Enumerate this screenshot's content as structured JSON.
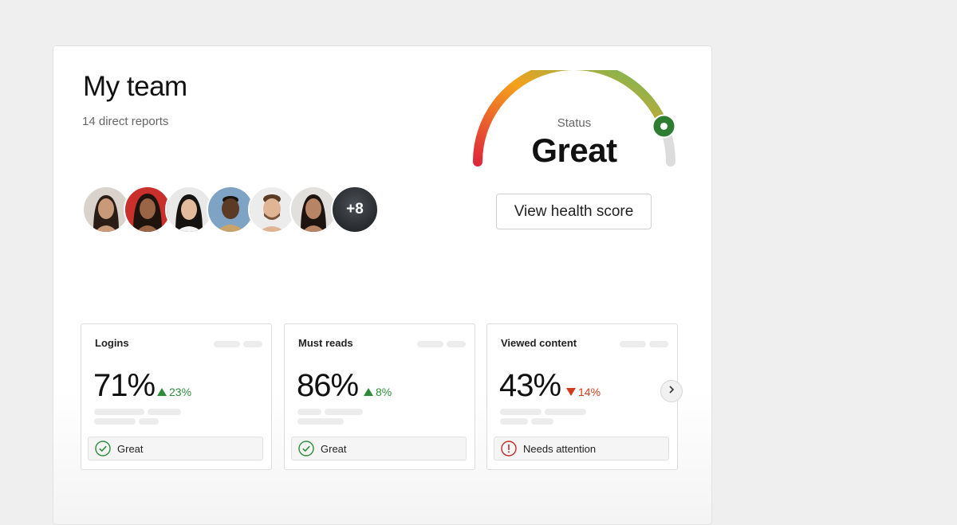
{
  "team": {
    "title": "My team",
    "subtitle": "14 direct reports",
    "avatars": [
      {
        "name": "avatar-1",
        "skin": "#c89a7a",
        "hair": "#2a1d16",
        "bg": "#d9d3cc"
      },
      {
        "name": "avatar-2",
        "skin": "#9a6446",
        "hair": "#1e130d",
        "bg": "#c9302c"
      },
      {
        "name": "avatar-3",
        "skin": "#e3bb9c",
        "hair": "#161210",
        "bg": "#e8e8e8"
      },
      {
        "name": "avatar-4",
        "skin": "#5b3a26",
        "hair": "#1a120d",
        "bg": "#7fa3c4"
      },
      {
        "name": "avatar-5",
        "skin": "#e0b595",
        "hair": "#5a3b24",
        "bg": "#ececec"
      },
      {
        "name": "avatar-6",
        "skin": "#b88466",
        "hair": "#1d1410",
        "bg": "#e2e0dc"
      }
    ],
    "more_count": "+8"
  },
  "health": {
    "status_label": "Status",
    "status_value": "Great",
    "level": 0.88,
    "button_label": "View health score",
    "colors": {
      "low": "#e0283c",
      "mid": "#f5a11c",
      "high": "#5dbb63",
      "marker": "#2e7d32",
      "track": "#dcdcdc"
    }
  },
  "metrics": [
    {
      "title": "Logins",
      "value": "71%",
      "trend": "23%",
      "direction": "up",
      "status": "Great",
      "status_kind": "good"
    },
    {
      "title": "Must reads",
      "value": "86%",
      "trend": "8%",
      "direction": "up",
      "status": "Great",
      "status_kind": "good"
    },
    {
      "title": "Viewed content",
      "value": "43%",
      "trend": "14%",
      "direction": "down",
      "status": "Needs attention",
      "status_kind": "warning"
    }
  ],
  "icons": {
    "up": "triangle-up-icon",
    "down": "triangle-down-icon",
    "good": "check-circle-icon",
    "warning": "alert-circle-icon",
    "next": "chevron-right-icon"
  }
}
